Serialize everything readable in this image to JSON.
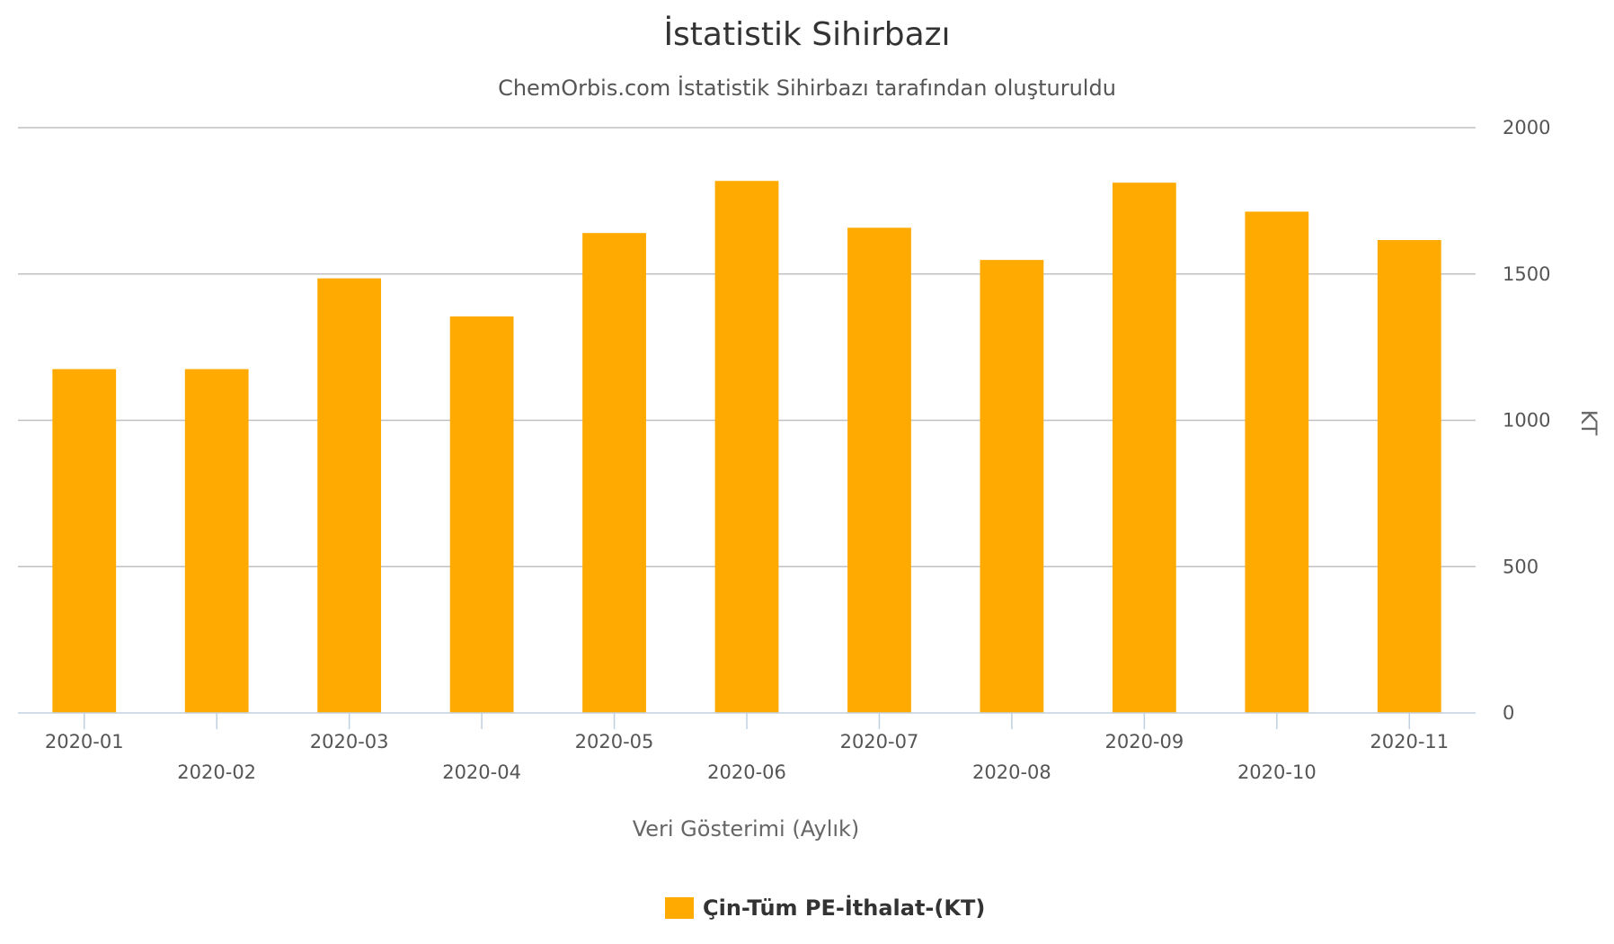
{
  "chart_data": {
    "type": "bar",
    "title": "İstatistik Sihirbazı",
    "subtitle": "ChemOrbis.com İstatistik Sihirbazı tarafından oluşturuldu",
    "xlabel": "Veri Gösterimi (Aylık)",
    "ylabel": "KT",
    "ylim": [
      0,
      2000
    ],
    "yticks": [
      0,
      500,
      1000,
      1500,
      2000
    ],
    "y_axis_side": "right",
    "grid": true,
    "legend_position": "bottom-center",
    "categories": [
      "2020-01",
      "2020-02",
      "2020-03",
      "2020-04",
      "2020-05",
      "2020-06",
      "2020-07",
      "2020-08",
      "2020-09",
      "2020-10",
      "2020-11"
    ],
    "series": [
      {
        "name": "Çin-Tüm PE-İthalat-(KT)",
        "color": "#FFAA00",
        "values": [
          1175,
          1175,
          1485,
          1355,
          1640,
          1818,
          1658,
          1548,
          1812,
          1713,
          1616
        ]
      }
    ]
  },
  "colors": {
    "bar": "#FFAA00",
    "grid": "#C0C0C0",
    "axis": "#C0D0E0"
  }
}
